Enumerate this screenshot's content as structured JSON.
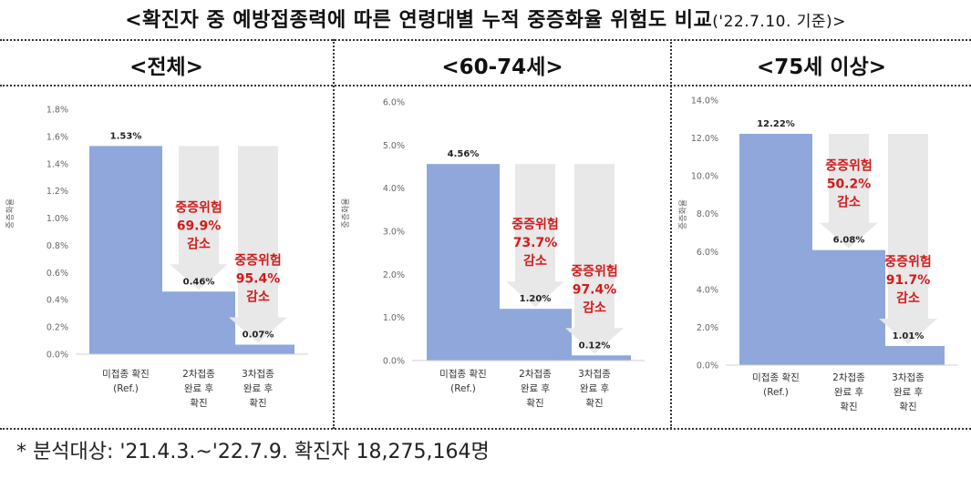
{
  "title": {
    "main": "<확진자 중 예방접종력에 따른 연령대별 누적 중증화율 위험도 비교",
    "date": "('22.7.10. 기준)>"
  },
  "footnote": "* 분석대상: '21.4.3.~'22.7.9. 확진자 18,275,164명",
  "colors": {
    "bar": "#8fa7da",
    "arrow": "#e8e8e8",
    "reduction_text": "#d01c1c",
    "axis_text": "#666666"
  },
  "chart_data": [
    {
      "type": "bar",
      "panel_title": "<전체>",
      "ylabel": "중증화율",
      "categories": [
        [
          "미접종 확진",
          "(Ref.)"
        ],
        [
          "2차접종",
          "완료 후",
          "확진"
        ],
        [
          "3차접종",
          "완료 후",
          "확진"
        ]
      ],
      "values": [
        1.53,
        0.46,
        0.07
      ],
      "value_labels": [
        "1.53%",
        "0.46%",
        "0.07%"
      ],
      "yticks": [
        "0.0%",
        "0.2%",
        "0.4%",
        "0.6%",
        "0.8%",
        "1.0%",
        "1.2%",
        "1.4%",
        "1.6%",
        "1.8%"
      ],
      "ylim": [
        0,
        1.8
      ],
      "reductions": [
        null,
        [
          "중증위험",
          "69.9%",
          "감소"
        ],
        [
          "중증위험",
          "95.4%",
          "감소"
        ]
      ]
    },
    {
      "type": "bar",
      "panel_title": "<60-74세>",
      "ylabel": "중증화율",
      "categories": [
        [
          "미접종 확진",
          "(Ref.)"
        ],
        [
          "2차접종",
          "완료 후",
          "확진"
        ],
        [
          "3차접종",
          "완료 후",
          "확진"
        ]
      ],
      "values": [
        4.56,
        1.2,
        0.12
      ],
      "value_labels": [
        "4.56%",
        "1.20%",
        "0.12%"
      ],
      "yticks": [
        "0.0%",
        "1.0%",
        "2.0%",
        "3.0%",
        "4.0%",
        "5.0%",
        "6.0%"
      ],
      "ylim": [
        0,
        6.0
      ],
      "reductions": [
        null,
        [
          "중증위험",
          "73.7%",
          "감소"
        ],
        [
          "중증위험",
          "97.4%",
          "감소"
        ]
      ]
    },
    {
      "type": "bar",
      "panel_title": "<75세 이상>",
      "ylabel": "중증화율",
      "categories": [
        [
          "미접종 확진",
          "(Ref.)"
        ],
        [
          "2차접종",
          "완료 후",
          "확진"
        ],
        [
          "3차접종",
          "완료 후",
          "확진"
        ]
      ],
      "values": [
        12.22,
        6.08,
        1.01
      ],
      "value_labels": [
        "12.22%",
        "6.08%",
        "1.01%"
      ],
      "yticks": [
        "0.0%",
        "2.0%",
        "4.0%",
        "6.0%",
        "8.0%",
        "10.0%",
        "12.0%",
        "14.0%"
      ],
      "ylim": [
        0,
        14.0
      ],
      "reductions": [
        null,
        [
          "중증위험",
          "50.2%",
          "감소"
        ],
        [
          "중증위험",
          "91.7%",
          "감소"
        ]
      ]
    }
  ]
}
